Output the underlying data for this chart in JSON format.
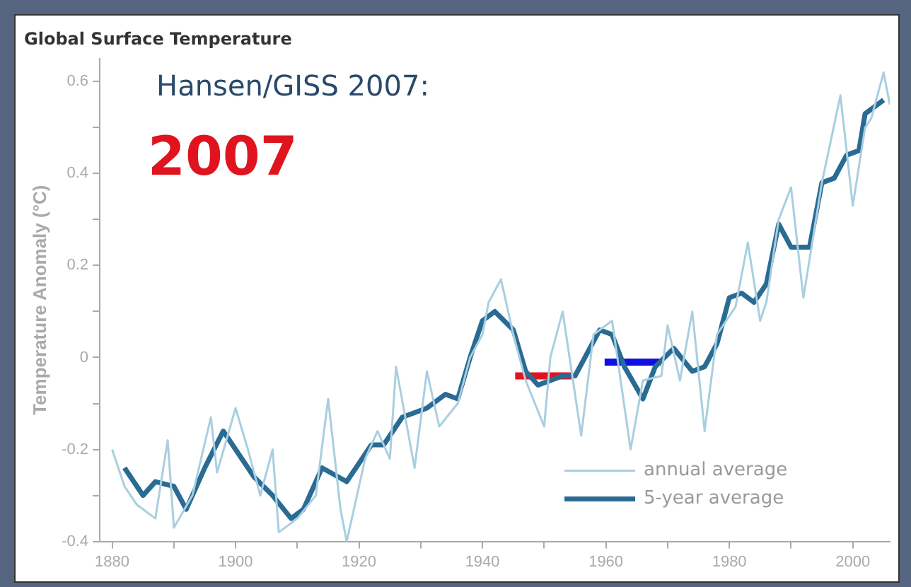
{
  "chart_data": {
    "type": "line",
    "title": "Global Surface Temperature",
    "ylabel": "Temperature Anomaly (°C)",
    "annotations": [
      "Hansen/GISS 2007:",
      "2007"
    ],
    "xlim": [
      1878,
      2006
    ],
    "ylim": [
      -0.4,
      0.65
    ],
    "xticks": [
      1880,
      {
        "value": 1890,
        "label": null
      },
      1900,
      {
        "value": 1910,
        "label": null
      },
      1920,
      {
        "value": 1930,
        "label": null
      },
      1940,
      {
        "value": 1950,
        "label": null
      },
      1960,
      {
        "value": 1970,
        "label": null
      },
      1980,
      {
        "value": 1990,
        "label": null
      },
      2000
    ],
    "yticks": [
      -0.4,
      {
        "value": -0.3,
        "label": null
      },
      -0.2,
      {
        "value": -0.1,
        "label": null
      },
      0,
      {
        "value": 0.1,
        "label": null
      },
      0.2,
      {
        "value": 0.3,
        "label": null
      },
      0.4,
      {
        "value": 0.5,
        "label": null
      },
      0.6
    ],
    "grid": false,
    "legend": "bottom right",
    "marker": "none",
    "series": [
      {
        "name": "annual average",
        "color": "#a9cfe0",
        "x": [
          1880,
          1882,
          1884,
          1887,
          1889,
          1890,
          1893,
          1896,
          1897,
          1900,
          1902,
          1904,
          1906,
          1907,
          1910,
          1913,
          1915,
          1917,
          1918,
          1921,
          1923,
          1925,
          1926,
          1929,
          1931,
          1933,
          1936,
          1938,
          1940,
          1941,
          1943,
          1945,
          1947,
          1950,
          1951,
          1953,
          1956,
          1958,
          1961,
          1964,
          1966,
          1969,
          1970,
          1972,
          1974,
          1976,
          1978,
          1981,
          1983,
          1985,
          1986,
          1988,
          1990,
          1992,
          1995,
          1998,
          2000,
          2002,
          2003,
          2005,
          2006
        ],
        "values": [
          -0.2,
          -0.28,
          -0.32,
          -0.35,
          -0.18,
          -0.37,
          -0.3,
          -0.13,
          -0.25,
          -0.11,
          -0.2,
          -0.3,
          -0.2,
          -0.38,
          -0.35,
          -0.3,
          -0.09,
          -0.33,
          -0.4,
          -0.22,
          -0.16,
          -0.22,
          -0.02,
          -0.24,
          -0.03,
          -0.15,
          -0.1,
          0.0,
          0.05,
          0.12,
          0.17,
          0.05,
          -0.05,
          -0.15,
          0.0,
          0.1,
          -0.17,
          0.05,
          0.08,
          -0.2,
          -0.05,
          -0.04,
          0.07,
          -0.05,
          0.1,
          -0.16,
          0.05,
          0.11,
          0.25,
          0.08,
          0.12,
          0.3,
          0.37,
          0.13,
          0.38,
          0.57,
          0.33,
          0.5,
          0.52,
          0.62,
          0.55
        ]
      },
      {
        "name": "5-year average",
        "color": "#2a6b93",
        "x": [
          1882,
          1885,
          1887,
          1890,
          1892,
          1895,
          1898,
          1900,
          1903,
          1906,
          1909,
          1911,
          1914,
          1918,
          1922,
          1924,
          1927,
          1931,
          1934,
          1936,
          1938,
          1940,
          1942,
          1945,
          1947,
          1949,
          1953,
          1955,
          1957,
          1959,
          1961,
          1963,
          1966,
          1968,
          1971,
          1974,
          1976,
          1978,
          1980,
          1982,
          1984,
          1986,
          1988,
          1990,
          1993,
          1995,
          1997,
          1999,
          2001,
          2002,
          2005
        ],
        "values": [
          -0.24,
          -0.3,
          -0.27,
          -0.28,
          -0.33,
          -0.24,
          -0.16,
          -0.2,
          -0.26,
          -0.3,
          -0.35,
          -0.33,
          -0.24,
          -0.27,
          -0.19,
          -0.19,
          -0.13,
          -0.11,
          -0.08,
          -0.09,
          0.0,
          0.08,
          0.1,
          0.06,
          -0.03,
          -0.06,
          -0.04,
          -0.04,
          0.01,
          0.06,
          0.05,
          -0.02,
          -0.09,
          -0.02,
          0.02,
          -0.03,
          -0.02,
          0.03,
          0.13,
          0.14,
          0.12,
          0.16,
          0.29,
          0.24,
          0.24,
          0.38,
          0.39,
          0.44,
          0.45,
          0.53,
          0.56
        ]
      },
      {
        "color": "#e0141e",
        "x": [
          1945.3,
          1954.4
        ],
        "values": [
          -0.04,
          -0.04
        ]
      },
      {
        "color": "#1010e0",
        "x": [
          1959.8,
          1968.9
        ],
        "values": [
          -0.01,
          -0.01
        ]
      }
    ]
  }
}
